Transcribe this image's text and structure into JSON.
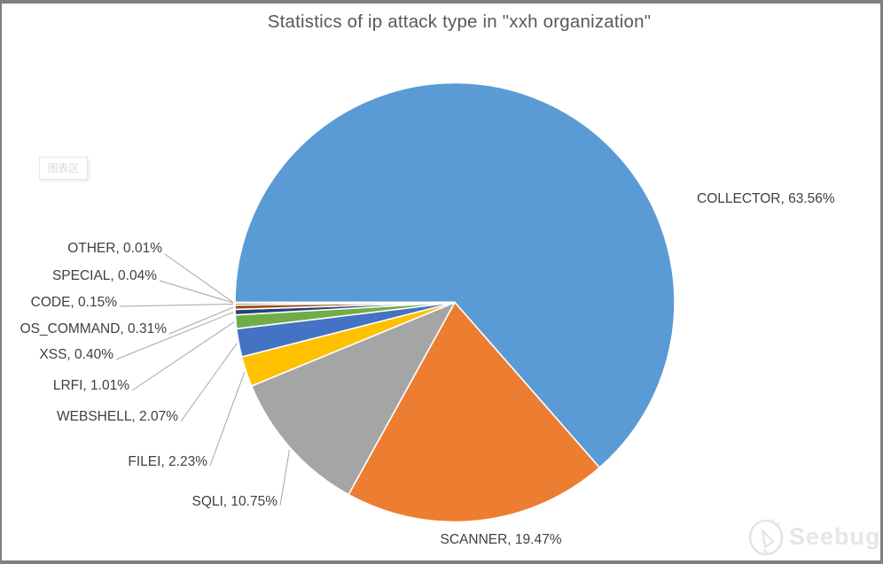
{
  "chart_data": {
    "type": "pie",
    "title": "Statistics of ip attack type in \"xxh organization\"",
    "unit": "%",
    "start_angle_deg_clockwise_from_top": 270,
    "direction": "clockwise",
    "legend": "none",
    "label_format": "NAME, value%",
    "slices": [
      {
        "label": "COLLECTOR",
        "value": 63.56,
        "display": "COLLECTOR, 63.56%",
        "color": "#5B9BD5"
      },
      {
        "label": "SCANNER",
        "value": 19.47,
        "display": "SCANNER, 19.47%",
        "color": "#ED7D31"
      },
      {
        "label": "SQLI",
        "value": 10.75,
        "display": "SQLI, 10.75%",
        "color": "#A5A5A5"
      },
      {
        "label": "FILEI",
        "value": 2.23,
        "display": "FILEI, 2.23%",
        "color": "#FFC000"
      },
      {
        "label": "WEBSHELL",
        "value": 2.07,
        "display": "WEBSHELL, 2.07%",
        "color": "#4472C4"
      },
      {
        "label": "LRFI",
        "value": 1.01,
        "display": "LRFI, 1.01%",
        "color": "#70AD47"
      },
      {
        "label": "XSS",
        "value": 0.4,
        "display": "XSS, 0.40%",
        "color": "#264478"
      },
      {
        "label": "OS_COMMAND",
        "value": 0.31,
        "display": "OS_COMMAND, 0.31%",
        "color": "#9E480E"
      },
      {
        "label": "CODE",
        "value": 0.15,
        "display": "CODE, 0.15%",
        "color": "#636363"
      },
      {
        "label": "SPECIAL",
        "value": 0.04,
        "display": "SPECIAL, 0.04%",
        "color": "#997300"
      },
      {
        "label": "OTHER",
        "value": 0.01,
        "display": "OTHER, 0.01%",
        "color": "#255E91"
      }
    ]
  },
  "tooltip": {
    "label": "图表区"
  },
  "watermark": {
    "brand": "Seebug"
  },
  "colors": {
    "leader_line": "#A6A6A6",
    "title_text": "#595959",
    "label_text": "#404040",
    "frame": "#7F7F7F",
    "slice_border": "#FFFFFF"
  }
}
